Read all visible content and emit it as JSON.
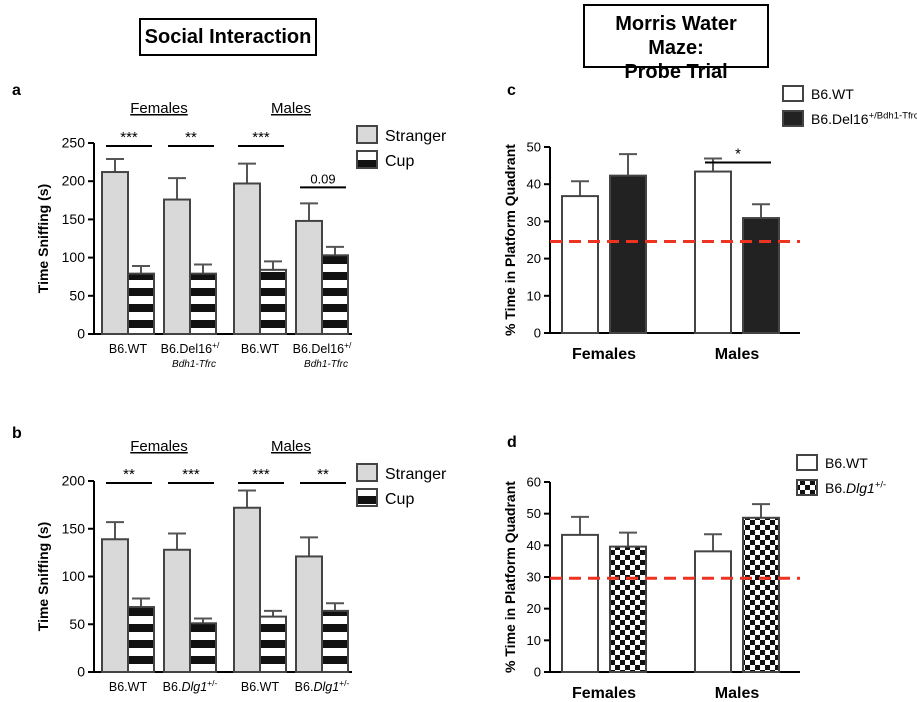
{
  "section_titles": {
    "social": "Social Interaction",
    "mwm_line1": "Morris Water Maze:",
    "mwm_line2": "Probe Trial"
  },
  "colors": {
    "stranger": "#d9d9d9",
    "wt_white": "#ffffff",
    "del16_black": "#222222",
    "chance_line": "#ee3322"
  },
  "chart_data": [
    {
      "panel": "a",
      "type": "bar",
      "ylabel": "Time Sniffing (s)",
      "ylim": [
        0,
        250
      ],
      "yticks": [
        0,
        50,
        100,
        150,
        200,
        250
      ],
      "groups": [
        {
          "label": "Females"
        },
        {
          "label": "Males"
        }
      ],
      "categories": [
        {
          "label": "B6.WT",
          "sup": "",
          "sub": ""
        },
        {
          "label": "B6.Del16",
          "sup": "+/",
          "sub": "Bdh1-Tfrc"
        },
        {
          "label": "B6.WT",
          "sup": "",
          "sub": ""
        },
        {
          "label": "B6.Del16",
          "sup": "+/",
          "sub": "Bdh1-Tfrc"
        }
      ],
      "series": [
        {
          "name": "Stranger",
          "values": [
            212,
            176,
            197,
            148
          ],
          "errors": [
            17,
            28,
            26,
            23
          ]
        },
        {
          "name": "Cup",
          "values": [
            79,
            79,
            84,
            103
          ],
          "errors": [
            10,
            12,
            11,
            11
          ]
        }
      ],
      "significance": [
        "***",
        "**",
        "***",
        "0.09"
      ]
    },
    {
      "panel": "b",
      "type": "bar",
      "ylabel": "Time Sniffing (s)",
      "ylim": [
        0,
        200
      ],
      "yticks": [
        0,
        50,
        100,
        150,
        200
      ],
      "groups": [
        {
          "label": "Females"
        },
        {
          "label": "Males"
        }
      ],
      "categories": [
        {
          "label": "B6.WT",
          "sup": "",
          "sub": ""
        },
        {
          "label": "B6.Dlg1",
          "sup": "+/-",
          "sub": ""
        },
        {
          "label": "B6.WT",
          "sup": "",
          "sub": ""
        },
        {
          "label": "B6.Dlg1",
          "sup": "+/-",
          "sub": ""
        }
      ],
      "series": [
        {
          "name": "Stranger",
          "values": [
            139,
            128,
            172,
            121
          ],
          "errors": [
            18,
            17,
            18,
            20
          ]
        },
        {
          "name": "Cup",
          "values": [
            68,
            51,
            58,
            64
          ],
          "errors": [
            9,
            5,
            6,
            8
          ]
        }
      ],
      "significance": [
        "**",
        "***",
        "***",
        "**"
      ]
    },
    {
      "panel": "c",
      "type": "bar",
      "ylabel": "% Time in Platform Quadrant",
      "ylim": [
        0,
        50
      ],
      "yticks": [
        0,
        10,
        20,
        30,
        40,
        50
      ],
      "categories": [
        "Females",
        "Males"
      ],
      "series": [
        {
          "name": "B6.WT",
          "sup": "",
          "values": [
            36.8,
            43.4
          ],
          "errors": [
            4.0,
            3.5
          ]
        },
        {
          "name": "B6.Del16",
          "sup": "+/Bdh1-Tfrc",
          "values": [
            42.3,
            30.9
          ],
          "errors": [
            5.8,
            3.7
          ]
        }
      ],
      "chance_level": 24.6,
      "significance": [
        "",
        "*"
      ]
    },
    {
      "panel": "d",
      "type": "bar",
      "ylabel": "% Time in Platform Quadrant",
      "ylim": [
        0,
        60
      ],
      "yticks": [
        0,
        10,
        20,
        30,
        40,
        50,
        60
      ],
      "categories": [
        "Females",
        "Males"
      ],
      "series": [
        {
          "name": "B6.WT",
          "sup": "",
          "values": [
            43.3,
            38.1
          ],
          "errors": [
            5.7,
            5.4
          ]
        },
        {
          "name": "B6.Dlg1",
          "sup": "+/-",
          "values": [
            39.6,
            48.7
          ],
          "errors": [
            4.4,
            4.3
          ]
        }
      ],
      "chance_level": 29.6,
      "significance": [
        "",
        ""
      ]
    }
  ]
}
